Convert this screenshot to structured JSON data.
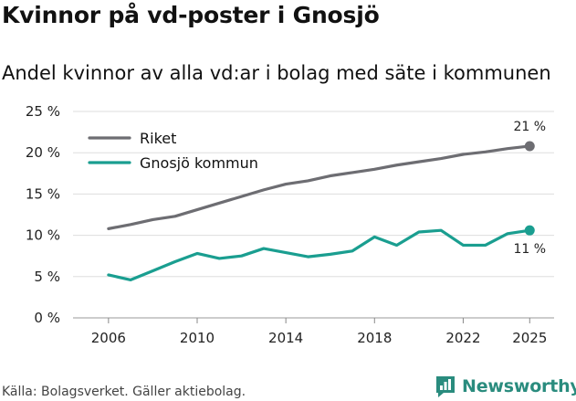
{
  "title": "Kvinnor på vd-poster i Gnosjö",
  "subtitle": "Andel kvinnor av alla vd:ar i bolag med säte i kommunen",
  "source": "Källa: Bolagsverket. Gäller aktiebolag.",
  "brand": "Newsworthy",
  "colors": {
    "riket": "#6d6d72",
    "gnosjo": "#1a9e90",
    "grid": "#dddddd",
    "brand": "#2a8c7e"
  },
  "chart_data": {
    "type": "line",
    "x": [
      2006,
      2007,
      2008,
      2009,
      2010,
      2011,
      2012,
      2013,
      2014,
      2015,
      2016,
      2017,
      2018,
      2019,
      2020,
      2021,
      2022,
      2023,
      2024,
      2025
    ],
    "series": [
      {
        "name": "Riket",
        "values": [
          10.8,
          11.3,
          11.9,
          12.3,
          13.1,
          13.9,
          14.7,
          15.5,
          16.2,
          16.6,
          17.2,
          17.6,
          18.0,
          18.5,
          18.9,
          19.3,
          19.8,
          20.1,
          20.5,
          20.8
        ],
        "end_label": "21 %"
      },
      {
        "name": "Gnosjö kommun",
        "values": [
          5.2,
          4.6,
          5.7,
          6.8,
          7.8,
          7.2,
          7.5,
          8.4,
          7.9,
          7.4,
          7.7,
          8.1,
          9.8,
          8.8,
          10.4,
          10.6,
          8.8,
          8.8,
          10.2,
          10.6
        ],
        "end_label": "11 %"
      }
    ],
    "xticks": [
      2006,
      2010,
      2014,
      2018,
      2022,
      2025
    ],
    "xtick_labels": [
      "2006",
      "2010",
      "2014",
      "2018",
      "2022",
      "2025"
    ],
    "yticks": [
      0,
      5,
      10,
      15,
      20,
      25
    ],
    "ytick_labels": [
      "0 %",
      "5 %",
      "10 %",
      "15 %",
      "20 %",
      "25 %"
    ],
    "ylim": [
      0,
      25
    ],
    "xlim": [
      2006,
      2025
    ],
    "legend": [
      {
        "label": "Riket"
      },
      {
        "label": "Gnosjö kommun"
      }
    ],
    "legend_position": "top-left",
    "grid": true
  }
}
